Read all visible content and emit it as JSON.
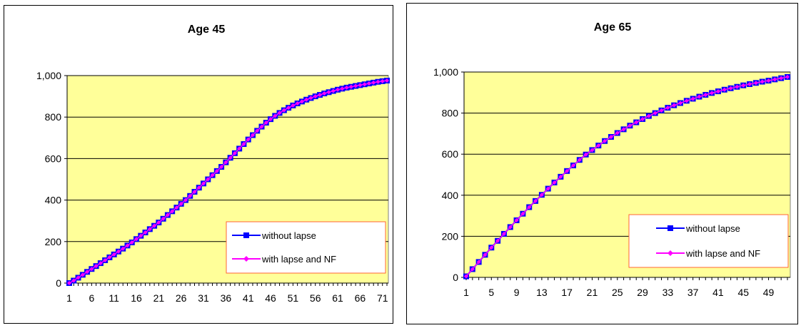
{
  "colors": {
    "plot_bg": "#FFFF99",
    "grid": "#000000",
    "legend_border": "#FF6633",
    "series_without_lapse": "#0000FF",
    "series_with_lapse": "#FF00FF"
  },
  "chart_data": [
    {
      "type": "line",
      "title": "Age 45",
      "xlabel": "",
      "ylabel": "",
      "ylim": [
        0,
        1000
      ],
      "yticks": [
        0,
        200,
        400,
        600,
        800,
        1000
      ],
      "ytick_labels": [
        "0",
        "200",
        "400",
        "600",
        "800",
        "1,000"
      ],
      "x": [
        1,
        2,
        3,
        4,
        5,
        6,
        7,
        8,
        9,
        10,
        11,
        12,
        13,
        14,
        15,
        16,
        17,
        18,
        19,
        20,
        21,
        22,
        23,
        24,
        25,
        26,
        27,
        28,
        29,
        30,
        31,
        32,
        33,
        34,
        35,
        36,
        37,
        38,
        39,
        40,
        41,
        42,
        43,
        44,
        45,
        46,
        47,
        48,
        49,
        50,
        51,
        52,
        53,
        54,
        55,
        56,
        57,
        58,
        59,
        60,
        61,
        62,
        63,
        64,
        65,
        66,
        67,
        68,
        69,
        70,
        71,
        72
      ],
      "xtick_labels": [
        "1",
        "6",
        "11",
        "16",
        "21",
        "26",
        "31",
        "36",
        "41",
        "46",
        "51",
        "56",
        "61",
        "66",
        "71"
      ],
      "grid": true,
      "legend_position": "bottom-right",
      "series": [
        {
          "name": "without lapse",
          "marker": "square",
          "values": [
            0,
            12,
            26,
            40,
            54,
            68,
            82,
            96,
            110,
            124,
            138,
            152,
            166,
            181,
            196,
            212,
            228,
            244,
            260,
            276,
            292,
            310,
            328,
            346,
            364,
            382,
            400,
            420,
            440,
            460,
            480,
            500,
            520,
            540,
            560,
            582,
            604,
            626,
            648,
            670,
            692,
            713,
            734,
            754,
            773,
            790,
            806,
            820,
            833,
            845,
            856,
            866,
            875,
            884,
            892,
            900,
            907,
            914,
            920,
            926,
            932,
            937,
            942,
            946,
            950,
            954,
            958,
            962,
            966,
            970,
            973,
            976
          ]
        },
        {
          "name": "with lapse and NF",
          "marker": "diamond",
          "values": [
            0,
            12,
            26,
            40,
            54,
            68,
            82,
            96,
            110,
            124,
            138,
            152,
            166,
            181,
            196,
            212,
            228,
            244,
            260,
            276,
            292,
            310,
            328,
            346,
            364,
            382,
            400,
            420,
            440,
            460,
            480,
            500,
            520,
            540,
            560,
            582,
            604,
            626,
            648,
            670,
            692,
            713,
            734,
            754,
            773,
            790,
            806,
            820,
            833,
            845,
            856,
            866,
            875,
            884,
            892,
            900,
            907,
            914,
            920,
            926,
            932,
            937,
            942,
            946,
            950,
            954,
            958,
            962,
            966,
            970,
            973,
            976
          ]
        }
      ]
    },
    {
      "type": "line",
      "title": "Age 65",
      "xlabel": "",
      "ylabel": "",
      "ylim": [
        0,
        1000
      ],
      "yticks": [
        0,
        200,
        400,
        600,
        800,
        1000
      ],
      "ytick_labels": [
        "0",
        "200",
        "400",
        "600",
        "800",
        "1,000"
      ],
      "x": [
        1,
        2,
        3,
        4,
        5,
        6,
        7,
        8,
        9,
        10,
        11,
        12,
        13,
        14,
        15,
        16,
        17,
        18,
        19,
        20,
        21,
        22,
        23,
        24,
        25,
        26,
        27,
        28,
        29,
        30,
        31,
        32,
        33,
        34,
        35,
        36,
        37,
        38,
        39,
        40,
        41,
        42,
        43,
        44,
        45,
        46,
        47,
        48,
        49,
        50,
        51,
        52
      ],
      "xtick_labels": [
        "1",
        "5",
        "9",
        "13",
        "17",
        "21",
        "25",
        "29",
        "33",
        "37",
        "41",
        "45",
        "49"
      ],
      "grid": true,
      "legend_position": "bottom-right",
      "series": [
        {
          "name": "without lapse",
          "marker": "square",
          "values": [
            5,
            40,
            75,
            110,
            145,
            178,
            212,
            245,
            278,
            310,
            342,
            372,
            402,
            432,
            462,
            490,
            518,
            545,
            572,
            598,
            620,
            642,
            664,
            684,
            703,
            721,
            739,
            755,
            771,
            786,
            800,
            813,
            826,
            838,
            849,
            860,
            870,
            880,
            889,
            898,
            906,
            914,
            921,
            928,
            935,
            941,
            947,
            953,
            958,
            964,
            970,
            976
          ]
        },
        {
          "name": "with lapse and NF",
          "marker": "diamond",
          "values": [
            5,
            40,
            75,
            110,
            145,
            178,
            212,
            245,
            278,
            310,
            342,
            372,
            402,
            432,
            462,
            490,
            518,
            545,
            572,
            598,
            620,
            642,
            664,
            684,
            703,
            721,
            739,
            755,
            771,
            786,
            800,
            813,
            826,
            838,
            849,
            860,
            870,
            880,
            889,
            898,
            906,
            914,
            921,
            928,
            935,
            941,
            947,
            953,
            958,
            964,
            970,
            976
          ]
        }
      ]
    }
  ]
}
